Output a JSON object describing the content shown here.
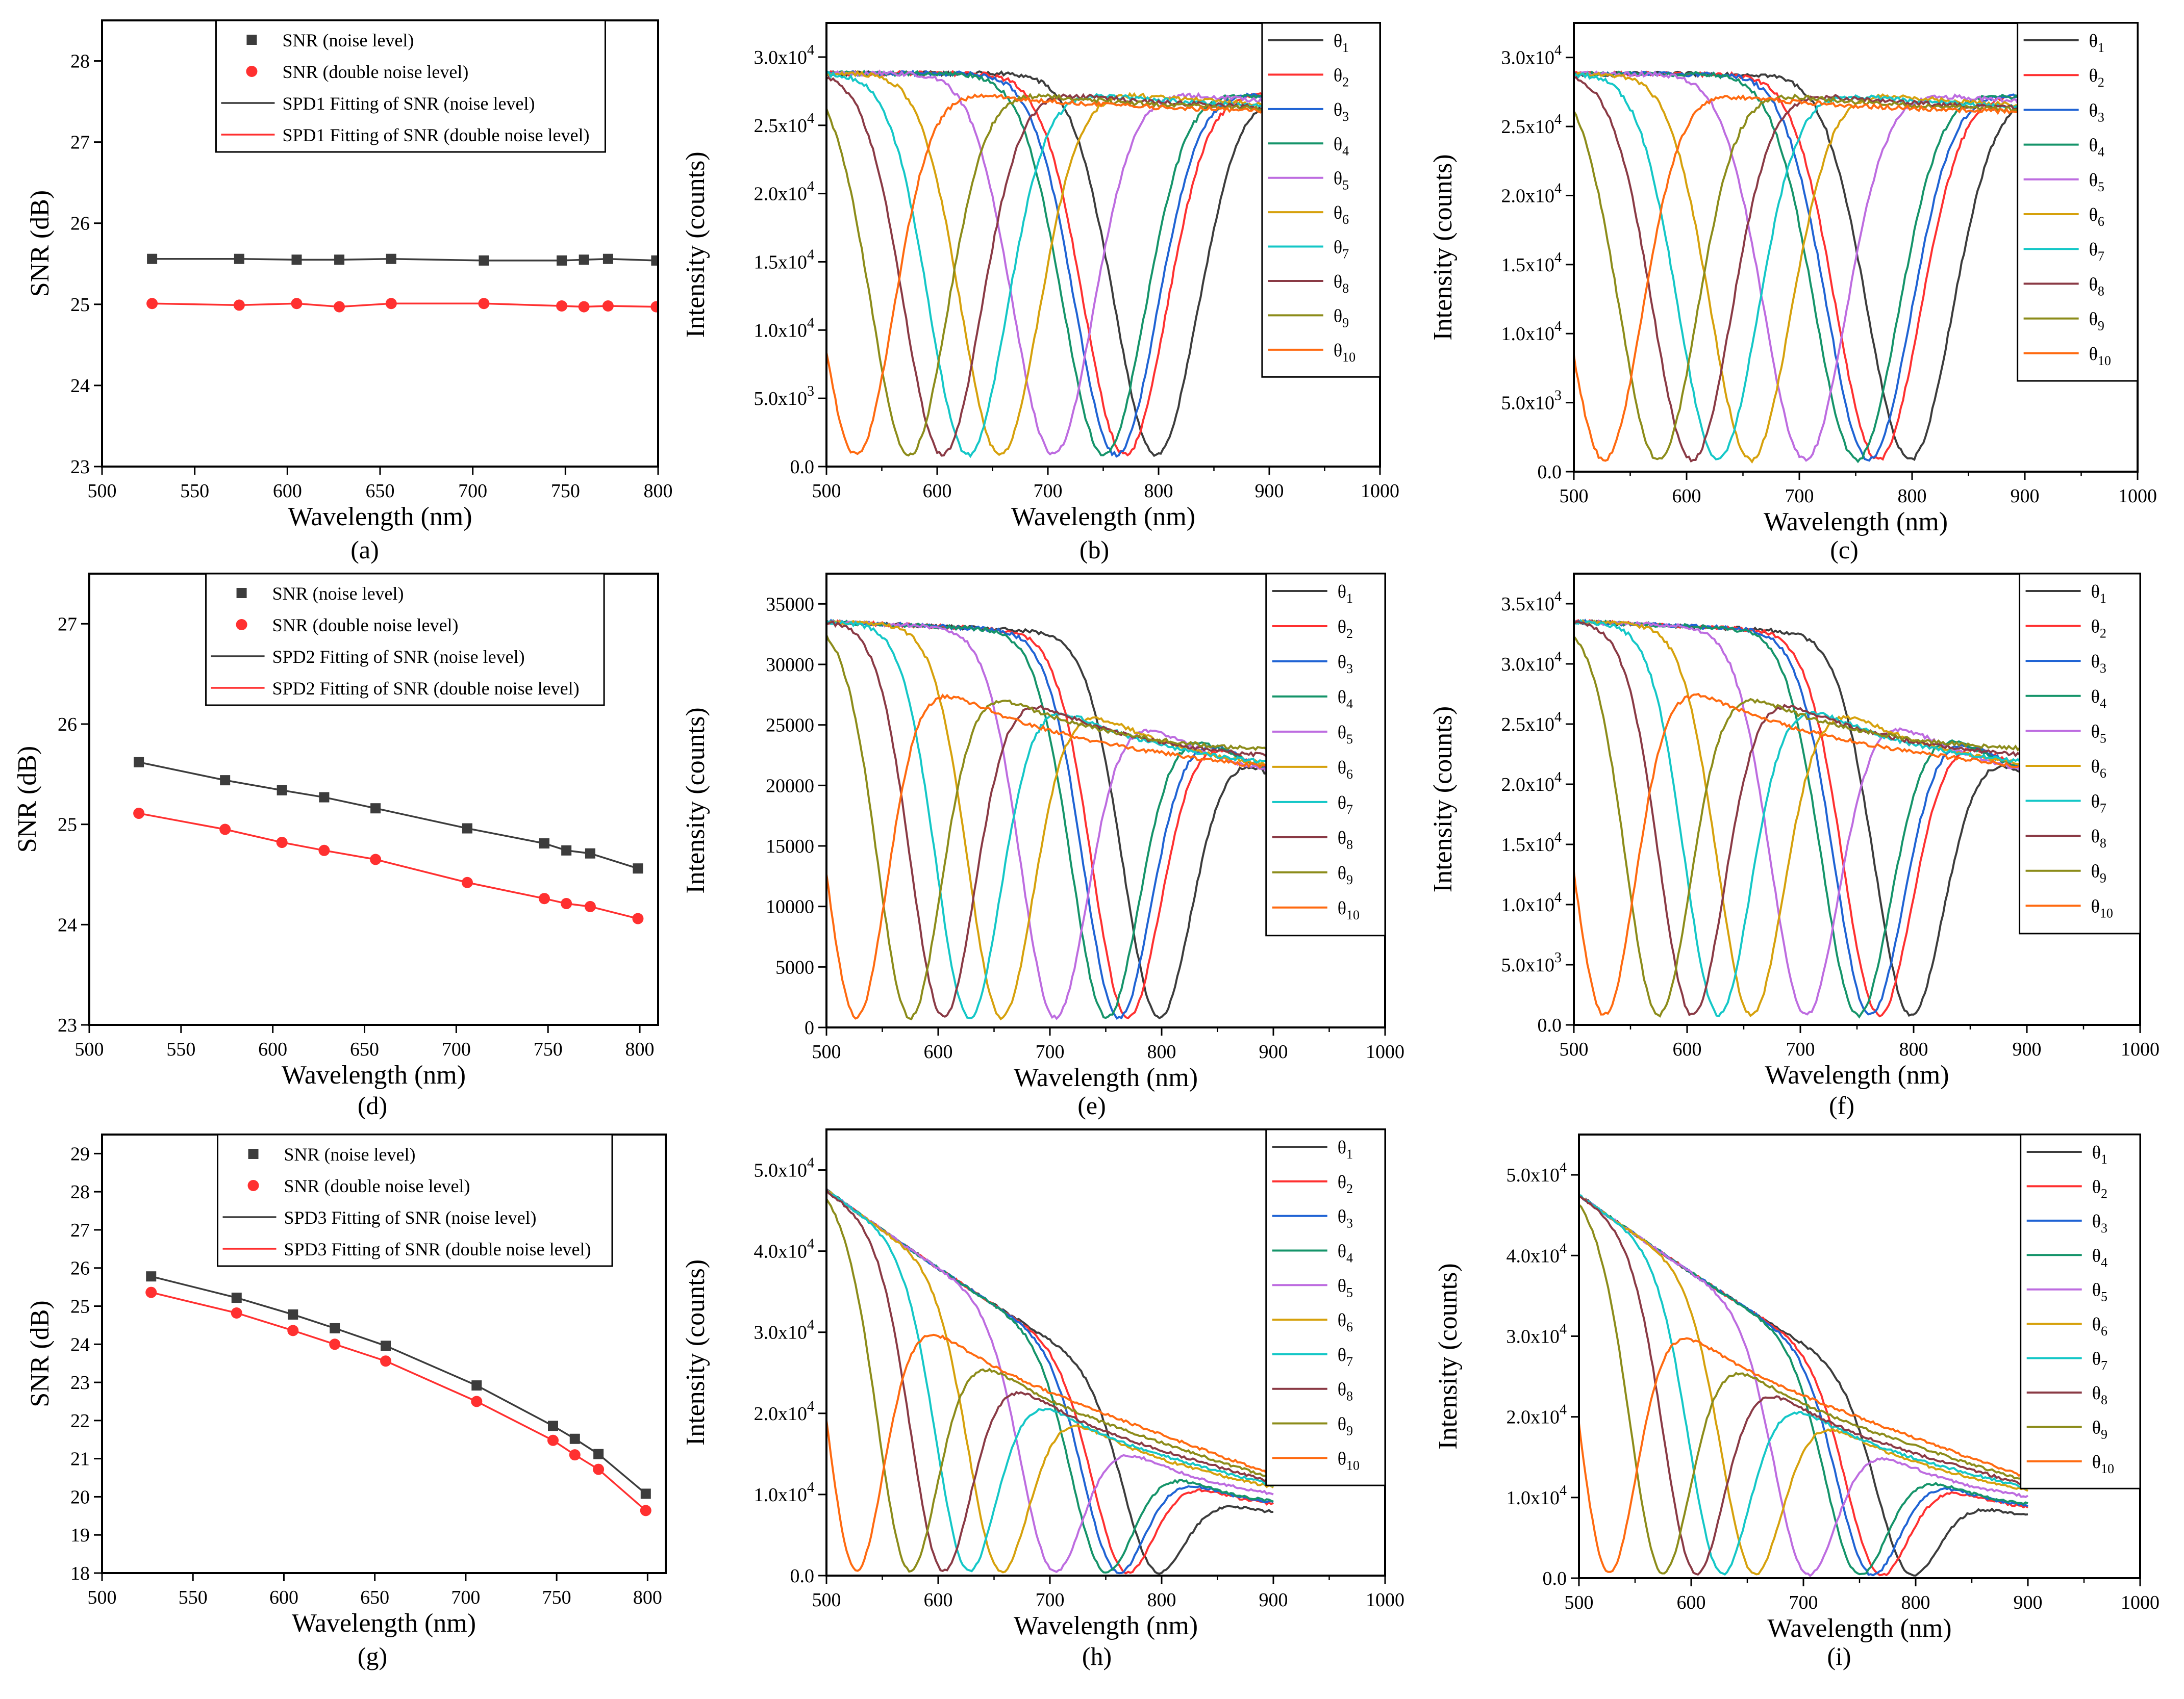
{
  "figure": {
    "labels": {
      "theta_symbol": "θ"
    },
    "colors": {
      "black": "#3c3c3c",
      "red": "#ff3030",
      "theta": [
        "#3c3c3c",
        "#ff3030",
        "#1f63d4",
        "#15946a",
        "#bd6ce0",
        "#d6a10c",
        "#14c7c7",
        "#8a3a45",
        "#8c8c1a",
        "#ff6a10"
      ]
    }
  },
  "chart_data": [
    {
      "id": "a",
      "type": "scatter",
      "label": "(a)",
      "xlabel": "Wavelength (nm)",
      "ylabel": "SNR (dB)",
      "xlim": [
        500,
        800
      ],
      "ylim": [
        23,
        28.5
      ],
      "xticks": [
        500,
        550,
        600,
        650,
        700,
        750,
        800
      ],
      "yticks": [
        23,
        24,
        25,
        26,
        27,
        28
      ],
      "x": [
        527,
        574,
        605,
        628,
        656,
        706,
        748,
        760,
        773,
        799
      ],
      "series": [
        {
          "name": "SNR (noise level)",
          "marker": "square",
          "color": "black",
          "values": [
            25.56,
            25.56,
            25.55,
            25.55,
            25.56,
            25.54,
            25.54,
            25.55,
            25.56,
            25.54
          ]
        },
        {
          "name": "SNR (double noise level)",
          "marker": "circle",
          "color": "red",
          "values": [
            25.01,
            24.99,
            25.01,
            24.97,
            25.01,
            25.01,
            24.98,
            24.97,
            24.98,
            24.97
          ]
        }
      ],
      "fits": [
        {
          "name": "SPD1 Fitting of SNR (noise level)",
          "color": "black",
          "y": [
            25.56,
            25.54
          ]
        },
        {
          "name": "SPD1 Fitting of SNR (double noise level)",
          "color": "red",
          "y": [
            25.0,
            24.98
          ]
        }
      ],
      "legend": "top-center"
    },
    {
      "id": "b",
      "type": "line",
      "label": "(b)",
      "xlabel": "Wavelength (nm)",
      "ylabel": "Intensity (counts)",
      "xlim": [
        500,
        1000
      ],
      "ylim": [
        0,
        32500
      ],
      "xticks": [
        500,
        600,
        700,
        800,
        900,
        1000
      ],
      "yticks": [
        0,
        5000,
        10000,
        15000,
        20000,
        25000,
        30000
      ],
      "ytick_labels": [
        {
          "mant": "0.0",
          "exp": ""
        },
        {
          "mant": "5.0x10",
          "exp": "3"
        },
        {
          "mant": "1.0x10",
          "exp": "4"
        },
        {
          "mant": "1.5x10",
          "exp": "4"
        },
        {
          "mant": "2.0x10",
          "exp": "4"
        },
        {
          "mant": "2.5x10",
          "exp": "4"
        },
        {
          "mant": "3.0x10",
          "exp": "4"
        }
      ],
      "series_names": [
        "θ1",
        "θ2",
        "θ3",
        "θ4",
        "θ5",
        "θ6",
        "θ7",
        "θ8",
        "θ9",
        "θ10"
      ],
      "minima_nm": [
        798,
        770,
        762,
        751,
        705,
        657,
        628,
        605,
        575,
        527
      ],
      "model": "A",
      "legend": "top-right"
    },
    {
      "id": "c",
      "type": "line",
      "label": "(c)",
      "xlabel": "Wavelength (nm)",
      "ylabel": "Intensity (counts)",
      "xlim": [
        500,
        1000
      ],
      "ylim": [
        0,
        32500
      ],
      "xticks": [
        500,
        600,
        700,
        800,
        900,
        1000
      ],
      "yticks": [
        0,
        5000,
        10000,
        15000,
        20000,
        25000,
        30000
      ],
      "ytick_labels": [
        {
          "mant": "0.0",
          "exp": ""
        },
        {
          "mant": "5.0x10",
          "exp": "3"
        },
        {
          "mant": "1.0x10",
          "exp": "4"
        },
        {
          "mant": "1.5x10",
          "exp": "4"
        },
        {
          "mant": "2.0x10",
          "exp": "4"
        },
        {
          "mant": "2.5x10",
          "exp": "4"
        },
        {
          "mant": "3.0x10",
          "exp": "4"
        }
      ],
      "series_names": [
        "θ1",
        "θ2",
        "θ3",
        "θ4",
        "θ5",
        "θ6",
        "θ7",
        "θ8",
        "θ9",
        "θ10"
      ],
      "minima_nm": [
        798,
        770,
        762,
        751,
        705,
        657,
        628,
        605,
        575,
        527
      ],
      "model": "A",
      "legend": "top-right"
    },
    {
      "id": "d",
      "type": "scatter",
      "label": "(d)",
      "xlabel": "Wavelength (nm)",
      "ylabel": "SNR (dB)",
      "xlim": [
        500,
        810
      ],
      "ylim": [
        23,
        27.5
      ],
      "xticks": [
        500,
        550,
        600,
        650,
        700,
        750,
        800
      ],
      "yticks": [
        23,
        24,
        25,
        26,
        27
      ],
      "x": [
        527,
        574,
        605,
        628,
        656,
        706,
        748,
        760,
        773,
        799
      ],
      "series": [
        {
          "name": "SNR (noise level)",
          "marker": "square",
          "color": "black",
          "values": [
            25.62,
            25.44,
            25.34,
            25.27,
            25.16,
            24.96,
            24.81,
            24.74,
            24.71,
            24.56
          ]
        },
        {
          "name": "SNR (double noise level)",
          "marker": "circle",
          "color": "red",
          "values": [
            25.11,
            24.95,
            24.82,
            24.74,
            24.65,
            24.42,
            24.26,
            24.21,
            24.18,
            24.06
          ]
        }
      ],
      "fits": [
        {
          "name": "SPD2 Fitting of SNR (noise level)",
          "color": "black",
          "y": [
            25.62,
            24.55
          ]
        },
        {
          "name": "SPD2 Fitting of SNR (double noise level)",
          "color": "red",
          "y": [
            25.12,
            24.05
          ]
        }
      ],
      "legend": "top-center"
    },
    {
      "id": "e",
      "type": "line",
      "label": "(e)",
      "xlabel": "Wavelength (nm)",
      "ylabel": "Intensity (counts)",
      "xlim": [
        500,
        1000
      ],
      "ylim": [
        0,
        37500
      ],
      "xticks": [
        500,
        600,
        700,
        800,
        900,
        1000
      ],
      "yticks": [
        0,
        5000,
        10000,
        15000,
        20000,
        25000,
        30000,
        35000
      ],
      "ytick_labels": [
        {
          "mant": "0",
          "exp": ""
        },
        {
          "mant": "5000",
          "exp": ""
        },
        {
          "mant": "10000",
          "exp": ""
        },
        {
          "mant": "15000",
          "exp": ""
        },
        {
          "mant": "20000",
          "exp": ""
        },
        {
          "mant": "25000",
          "exp": ""
        },
        {
          "mant": "30000",
          "exp": ""
        },
        {
          "mant": "35000",
          "exp": ""
        }
      ],
      "series_names": [
        "θ1",
        "θ2",
        "θ3",
        "θ4",
        "θ5",
        "θ6",
        "θ7",
        "θ8",
        "θ9",
        "θ10"
      ],
      "minima_nm": [
        798,
        770,
        762,
        751,
        705,
        657,
        628,
        605,
        575,
        527
      ],
      "model": "B",
      "legend": "top-right"
    },
    {
      "id": "f",
      "type": "line",
      "label": "(f)",
      "xlabel": "Wavelength (nm)",
      "ylabel": "Intensity (counts)",
      "xlim": [
        500,
        1000
      ],
      "ylim": [
        0,
        37500
      ],
      "xticks": [
        500,
        600,
        700,
        800,
        900,
        1000
      ],
      "yticks": [
        0,
        5000,
        10000,
        15000,
        20000,
        25000,
        30000,
        35000
      ],
      "ytick_labels": [
        {
          "mant": "0.0",
          "exp": ""
        },
        {
          "mant": "5.0x10",
          "exp": "3"
        },
        {
          "mant": "1.0x10",
          "exp": "4"
        },
        {
          "mant": "1.5x10",
          "exp": "4"
        },
        {
          "mant": "2.0x10",
          "exp": "4"
        },
        {
          "mant": "2.5x10",
          "exp": "4"
        },
        {
          "mant": "3.0x10",
          "exp": "4"
        },
        {
          "mant": "3.5x10",
          "exp": "4"
        }
      ],
      "series_names": [
        "θ1",
        "θ2",
        "θ3",
        "θ4",
        "θ5",
        "θ6",
        "θ7",
        "θ8",
        "θ9",
        "θ10"
      ],
      "minima_nm": [
        798,
        770,
        762,
        751,
        705,
        657,
        628,
        605,
        575,
        527
      ],
      "model": "B",
      "legend": "top-right"
    },
    {
      "id": "g",
      "type": "scatter",
      "label": "(g)",
      "xlabel": "Wavelength (nm)",
      "ylabel": "SNR (dB)",
      "xlim": [
        500,
        810
      ],
      "ylim": [
        18,
        29.5
      ],
      "xticks": [
        500,
        550,
        600,
        650,
        700,
        750,
        800
      ],
      "yticks": [
        18,
        19,
        20,
        21,
        22,
        23,
        24,
        25,
        26,
        27,
        28,
        29
      ],
      "x": [
        527,
        574,
        605,
        628,
        656,
        706,
        748,
        760,
        773,
        799
      ],
      "series": [
        {
          "name": "SNR (noise level)",
          "marker": "square",
          "color": "black",
          "values": [
            25.78,
            25.22,
            24.78,
            24.42,
            23.96,
            22.92,
            21.86,
            21.52,
            21.12,
            20.08
          ]
        },
        {
          "name": "SNR (double noise level)",
          "marker": "circle",
          "color": "red",
          "values": [
            25.36,
            24.82,
            24.36,
            24.0,
            23.56,
            22.5,
            21.48,
            21.1,
            20.72,
            19.64
          ]
        }
      ],
      "fits": [
        {
          "name": "SPD3 Fitting of SNR (noise level)",
          "color": "black",
          "y": [
            25.78,
            20.1
          ]
        },
        {
          "name": "SPD3 Fitting of SNR (double noise level)",
          "color": "red",
          "y": [
            25.36,
            19.66
          ]
        }
      ],
      "legend": "top-center"
    },
    {
      "id": "h",
      "type": "line",
      "label": "(h)",
      "xlabel": "Wavelength (nm)",
      "ylabel": "Intensity (counts)",
      "xlim": [
        500,
        1000
      ],
      "ylim": [
        0,
        55000
      ],
      "xticks": [
        500,
        600,
        700,
        800,
        900,
        1000
      ],
      "yticks": [
        0,
        10000,
        20000,
        30000,
        40000,
        50000
      ],
      "ytick_labels": [
        {
          "mant": "0.0",
          "exp": ""
        },
        {
          "mant": "1.0x10",
          "exp": "4"
        },
        {
          "mant": "2.0x10",
          "exp": "4"
        },
        {
          "mant": "3.0x10",
          "exp": "4"
        },
        {
          "mant": "4.0x10",
          "exp": "4"
        },
        {
          "mant": "5.0x10",
          "exp": "4"
        }
      ],
      "series_names": [
        "θ1",
        "θ2",
        "θ3",
        "θ4",
        "θ5",
        "θ6",
        "θ7",
        "θ8",
        "θ9",
        "θ10"
      ],
      "minima_nm": [
        798,
        770,
        762,
        751,
        705,
        657,
        628,
        605,
        575,
        527
      ],
      "model": "C",
      "legend": "top-right"
    },
    {
      "id": "i",
      "type": "line",
      "label": "(i)",
      "xlabel": "Wavelength (nm)",
      "ylabel": "Intensity (counts)",
      "xlim": [
        500,
        1000
      ],
      "ylim": [
        0,
        55000
      ],
      "xticks": [
        500,
        600,
        700,
        800,
        900,
        1000
      ],
      "yticks": [
        0,
        10000,
        20000,
        30000,
        40000,
        50000
      ],
      "ytick_labels": [
        {
          "mant": "0.0",
          "exp": ""
        },
        {
          "mant": "1.0x10",
          "exp": "4"
        },
        {
          "mant": "2.0x10",
          "exp": "4"
        },
        {
          "mant": "3.0x10",
          "exp": "4"
        },
        {
          "mant": "4.0x10",
          "exp": "4"
        },
        {
          "mant": "5.0x10",
          "exp": "4"
        }
      ],
      "series_names": [
        "θ1",
        "θ2",
        "θ3",
        "θ4",
        "θ5",
        "θ6",
        "θ7",
        "θ8",
        "θ9",
        "θ10"
      ],
      "minima_nm": [
        798,
        770,
        762,
        751,
        705,
        657,
        628,
        605,
        575,
        527
      ],
      "model": "C",
      "legend": "top-right"
    }
  ]
}
